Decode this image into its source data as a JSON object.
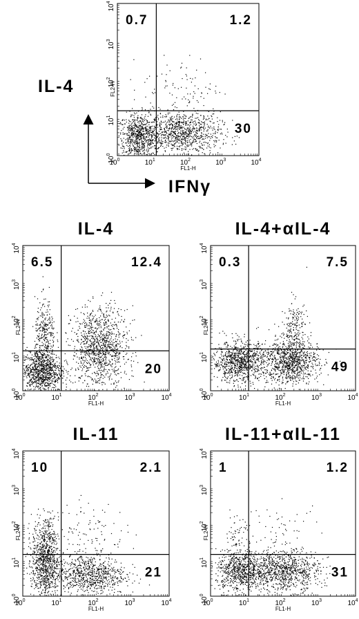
{
  "axis": {
    "base": "10",
    "exponents": [
      0,
      1,
      2,
      3,
      4
    ],
    "x_label": "FL1-H",
    "y_label": "FL2-H"
  },
  "key_panel": {
    "y_marker": "IL-4",
    "x_marker": "IFNγ",
    "quadrants": {
      "upper_left": 0.7,
      "upper_right": 1.2,
      "lower_right": 30
    }
  },
  "panels": [
    {
      "title": "IL-4",
      "quadrants": {
        "upper_left": 6.5,
        "upper_right": 12.4,
        "lower_right": 20
      }
    },
    {
      "title": "IL-4+αIL-4",
      "quadrants": {
        "upper_left": 0.3,
        "upper_right": 7.5,
        "lower_right": 49
      }
    },
    {
      "title": "IL-11",
      "quadrants": {
        "upper_left": 10,
        "upper_right": 2.1,
        "lower_right": 21
      }
    },
    {
      "title": "IL-11+αIL-11",
      "quadrants": {
        "upper_left": 1,
        "upper_right": 1.2,
        "lower_right": 31
      }
    }
  ]
}
